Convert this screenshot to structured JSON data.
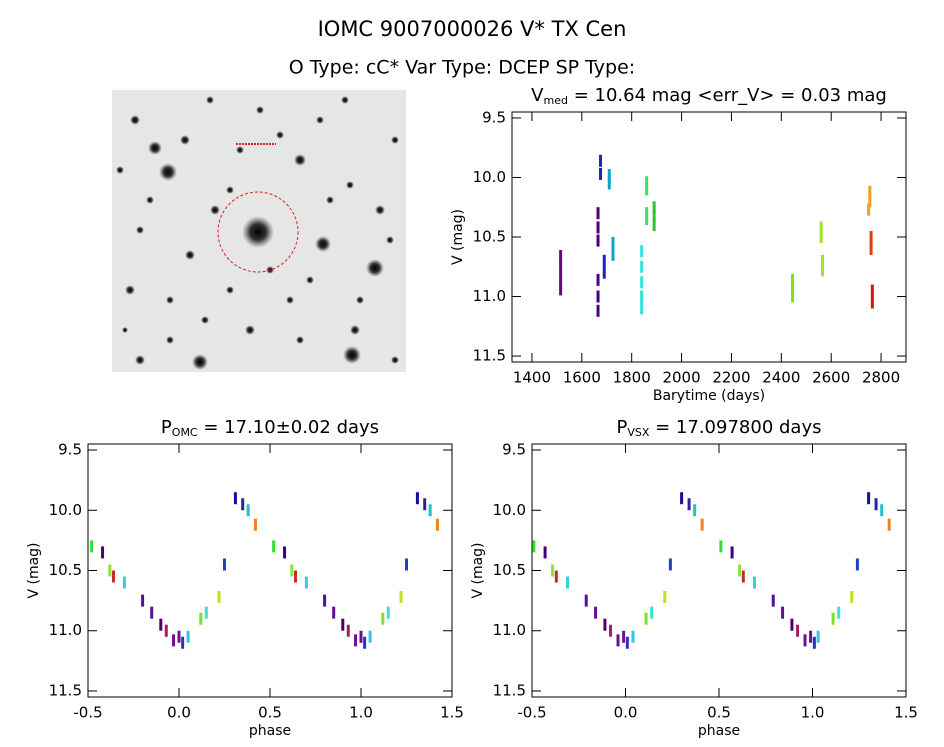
{
  "header": {
    "title": "IOMC 9007000026    V* TX Cen",
    "subtitle": "O Type: cC*   Var Type: DCEP   SP Type:"
  },
  "chart_data": [
    {
      "type": "scatter",
      "title": {
        "main": "V",
        "sub": "med",
        "rest": " = 10.64 mag <err_V> = 0.03 mag"
      },
      "x_label": "Barytime (days)",
      "y_label": "V (mag)",
      "xlim": [
        1320,
        2900
      ],
      "xticks": [
        1400,
        1600,
        1800,
        2000,
        2200,
        2400,
        2600,
        2800
      ],
      "ylim": [
        9.45,
        11.55
      ],
      "y_reversed": true,
      "yticks": [
        9.5,
        {
          "value": 10,
          "label": "10.0"
        },
        10.5,
        {
          "value": 11,
          "label": "11.0"
        },
        11.5
      ],
      "series": [
        {
          "color": "#5a0a8c",
          "x": [
            1515,
            1515,
            1515,
            1515
          ],
          "values": [
            10.66,
            10.75,
            10.85,
            10.94
          ]
        },
        {
          "color": "#4b0082",
          "x": [
            1665,
            1665,
            1665,
            1665,
            1665,
            1665
          ],
          "values": [
            10.3,
            10.42,
            10.53,
            10.86,
            11.0,
            11.12
          ]
        },
        {
          "color": "#2020c0",
          "x": [
            1675,
            1675,
            1690,
            1690
          ],
          "values": [
            9.86,
            9.97,
            10.7,
            10.8
          ]
        },
        {
          "color": "#10a0d0",
          "x": [
            1710,
            1710,
            1725,
            1725
          ],
          "values": [
            9.98,
            10.05,
            10.55,
            10.65
          ]
        },
        {
          "color": "#30e0e0",
          "x": [
            1840,
            1840,
            1840,
            1840,
            1840
          ],
          "values": [
            10.62,
            10.75,
            10.88,
            11.0,
            11.1
          ]
        },
        {
          "color": "#40e060",
          "x": [
            1860,
            1860,
            1860,
            1860
          ],
          "values": [
            10.04,
            10.1,
            10.3,
            10.35
          ]
        },
        {
          "color": "#30c030",
          "x": [
            1890,
            1890,
            1890
          ],
          "values": [
            10.25,
            10.32,
            10.4
          ]
        },
        {
          "color": "#80e020",
          "x": [
            2445,
            2445,
            2445
          ],
          "values": [
            10.86,
            10.93,
            11.0
          ]
        },
        {
          "color": "#a0e030",
          "x": [
            2560,
            2560,
            2565,
            2565
          ],
          "values": [
            10.42,
            10.5,
            10.7,
            10.78
          ]
        },
        {
          "color": "#f0a020",
          "x": [
            2750,
            2755,
            2755
          ],
          "values": [
            10.27,
            10.12,
            10.2
          ]
        },
        {
          "color": "#e04010",
          "x": [
            2760,
            2760
          ],
          "values": [
            10.5,
            10.6
          ]
        },
        {
          "color": "#e01010",
          "x": [
            2765,
            2765
          ],
          "values": [
            10.95,
            11.05
          ]
        }
      ]
    },
    {
      "type": "scatter",
      "title": {
        "main": "P",
        "sub": "OMC",
        "rest": " = 17.10±0.02 days"
      },
      "x_label": "phase",
      "y_label": "V (mag)",
      "xlim": [
        -0.5,
        1.5
      ],
      "xticks": [
        -0.5,
        {
          "value": 0,
          "label": "0.0"
        },
        0.5,
        {
          "value": 1,
          "label": "1.0"
        },
        1.5
      ],
      "ylim": [
        9.45,
        11.55
      ],
      "y_reversed": true,
      "yticks": [
        9.5,
        {
          "value": 10,
          "label": "10.0"
        },
        10.5,
        {
          "value": 11,
          "label": "11.0"
        },
        11.5
      ],
      "series": [
        {
          "colors": [
            "#6a1090",
            "#3030c0",
            "#6a1090",
            "#30c8e0",
            "#80e020",
            "#40e0d0",
            "#c0e020",
            "#2040c0",
            "#1010a0",
            "#3020a0",
            "#20c0d0",
            "#f08020",
            "#30e030",
            "#400080",
            "#90e040",
            "#c03020",
            "#30d0e0",
            "#5010a0",
            "#601090",
            "#500060",
            "#a02060",
            "#6a1090",
            "#3030c0",
            "#6a1090",
            "#30c8e0",
            "#80e020",
            "#40e0d0",
            "#c0e020",
            "#2040c0",
            "#1010a0",
            "#3020a0",
            "#20c0d0",
            "#f08020",
            "#30e030",
            "#400080",
            "#90e040",
            "#c03020",
            "#30d0e0",
            "#5010a0",
            "#601090",
            "#500060",
            "#a02060"
          ],
          "x": [
            0.0,
            0.02,
            0.97,
            0.05,
            0.12,
            0.15,
            0.22,
            0.25,
            0.31,
            0.35,
            0.38,
            0.42,
            0.52,
            0.58,
            0.62,
            0.64,
            0.7,
            0.8,
            0.85,
            0.9,
            0.93,
            1.0,
            1.02,
            -0.03,
            1.05,
            1.12,
            1.15,
            1.22,
            1.25,
            1.31,
            1.35,
            1.38,
            1.42,
            -0.48,
            -0.42,
            -0.38,
            -0.36,
            -0.3,
            -0.2,
            -0.15,
            -0.1,
            -0.07
          ],
          "values": [
            11.05,
            11.1,
            11.08,
            11.05,
            10.9,
            10.85,
            10.72,
            10.45,
            9.9,
            9.95,
            10.0,
            10.12,
            10.3,
            10.35,
            10.5,
            10.55,
            10.6,
            10.75,
            10.85,
            10.95,
            11.0,
            11.05,
            11.1,
            11.08,
            11.05,
            10.9,
            10.85,
            10.72,
            10.45,
            9.9,
            9.95,
            10.0,
            10.12,
            10.3,
            10.35,
            10.5,
            10.55,
            10.6,
            10.75,
            10.85,
            10.95,
            11.0
          ]
        }
      ]
    },
    {
      "type": "scatter",
      "title": {
        "main": "P",
        "sub": "VSX",
        "rest": " = 17.097800 days"
      },
      "x_label": "phase",
      "y_label": "V (mag)",
      "xlim": [
        -0.5,
        1.5
      ],
      "xticks": [
        -0.5,
        {
          "value": 0,
          "label": "0.0"
        },
        0.5,
        {
          "value": 1,
          "label": "1.0"
        },
        1.5
      ],
      "ylim": [
        9.45,
        11.55
      ],
      "y_reversed": true,
      "yticks": [
        9.5,
        {
          "value": 10,
          "label": "10.0"
        },
        10.5,
        {
          "value": 11,
          "label": "11.0"
        },
        11.5
      ],
      "series": [
        {
          "colors": [
            "#6a1090",
            "#3030c0",
            "#6a1090",
            "#30c8e0",
            "#80e020",
            "#40e0d0",
            "#c0e020",
            "#2040c0",
            "#1010a0",
            "#3020a0",
            "#20c0d0",
            "#f08020",
            "#30e030",
            "#400080",
            "#90e040",
            "#c03020",
            "#30d0e0",
            "#5010a0",
            "#601090",
            "#500060",
            "#a02060",
            "#6a1090",
            "#3030c0",
            "#6a1090",
            "#30c8e0",
            "#80e020",
            "#40e0d0",
            "#c0e020",
            "#2040c0",
            "#1010a0",
            "#3020a0",
            "#20c0d0",
            "#f08020",
            "#30e030",
            "#400080",
            "#90e040",
            "#c03020",
            "#30d0e0",
            "#5010a0",
            "#601090",
            "#500060",
            "#a02060"
          ],
          "x": [
            -0.01,
            0.01,
            0.96,
            0.04,
            0.11,
            0.14,
            0.21,
            0.24,
            0.3,
            0.34,
            0.37,
            0.41,
            0.51,
            0.57,
            0.61,
            0.63,
            0.69,
            0.79,
            0.84,
            0.89,
            0.92,
            0.99,
            1.01,
            -0.04,
            1.03,
            1.11,
            1.14,
            1.21,
            1.24,
            1.3,
            1.34,
            1.37,
            1.41,
            -0.49,
            -0.43,
            -0.39,
            -0.37,
            -0.31,
            -0.21,
            -0.16,
            -0.11,
            -0.08
          ],
          "values": [
            11.05,
            11.1,
            11.08,
            11.05,
            10.9,
            10.85,
            10.72,
            10.45,
            9.9,
            9.95,
            10.0,
            10.12,
            10.3,
            10.35,
            10.5,
            10.55,
            10.6,
            10.75,
            10.85,
            10.95,
            11.0,
            11.05,
            11.1,
            11.08,
            11.05,
            10.9,
            10.85,
            10.72,
            10.45,
            9.9,
            9.95,
            10.0,
            10.12,
            10.3,
            10.35,
            10.5,
            10.55,
            10.6,
            10.75,
            10.85,
            10.95,
            11.0
          ]
        }
      ]
    }
  ]
}
